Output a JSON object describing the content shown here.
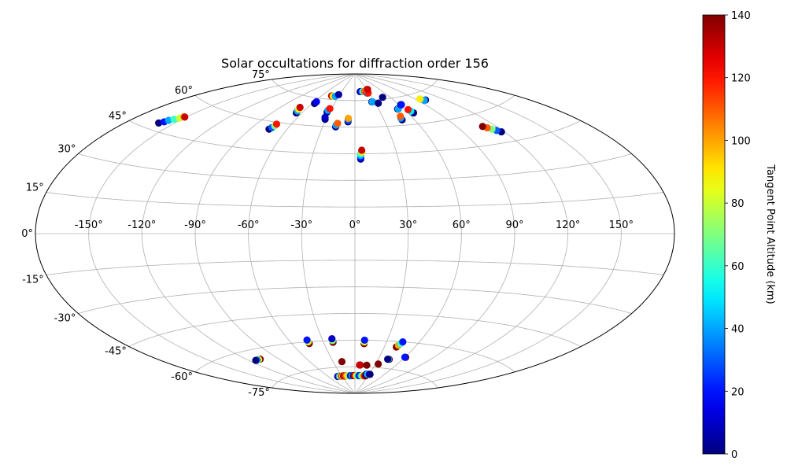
{
  "chart_data": {
    "type": "scatter",
    "projection": "aitoff",
    "title": "Solar occultations for diffraction order 156",
    "grid": true,
    "lon_ticks": [
      -150,
      -120,
      -90,
      -60,
      -30,
      0,
      30,
      60,
      90,
      120,
      150
    ],
    "lat_ticks": [
      -75,
      -60,
      -45,
      -30,
      -15,
      0,
      15,
      30,
      45,
      60,
      75
    ],
    "lon_tick_labels": [
      "-150°",
      "-120°",
      "-90°",
      "-60°",
      "-30°",
      "0°",
      "30°",
      "60°",
      "90°",
      "120°",
      "150°"
    ],
    "lat_tick_labels": [
      "-75°",
      "-60°",
      "-45°",
      "-30°",
      "-15°",
      "0°",
      "15°",
      "30°",
      "45°",
      "60°",
      "75°"
    ],
    "colorbar": {
      "label": "Tangent Point Altitude (km)",
      "range": [
        0,
        140
      ],
      "ticks": [
        0,
        20,
        40,
        60,
        80,
        100,
        120,
        140
      ],
      "tick_labels": [
        "0",
        "20",
        "40",
        "60",
        "80",
        "100",
        "120",
        "140"
      ],
      "colormap": "jet"
    },
    "series": [
      {
        "lon": [
          -160,
          -158,
          -157,
          -155,
          -153,
          -152,
          -151
        ],
        "lat": [
          48,
          49,
          50,
          51,
          52,
          53,
          53
        ],
        "alt": [
          0,
          20,
          40,
          60,
          80,
          100,
          130
        ]
      },
      {
        "lon": [
          -75,
          -74,
          -73,
          -73
        ],
        "lat": [
          56,
          57,
          58,
          59
        ],
        "alt": [
          0,
          30,
          70,
          120
        ]
      },
      {
        "lon": [
          -66,
          -67,
          -68,
          -69
        ],
        "lat": [
          66,
          67,
          68,
          69
        ],
        "alt": [
          0,
          40,
          90,
          130
        ]
      },
      {
        "lon": [
          -57,
          -57
        ],
        "lat": [
          72,
          73
        ],
        "alt": [
          0,
          15
        ]
      },
      {
        "lon": [
          -43,
          -40,
          -36,
          -32
        ],
        "lat": [
          77,
          77,
          77,
          78
        ],
        "alt": [
          130,
          90,
          40,
          5
        ]
      },
      {
        "lon": [
          -33,
          -33,
          -32
        ],
        "lat": [
          68,
          69,
          70
        ],
        "alt": [
          0,
          40,
          120
        ]
      },
      {
        "lon": [
          -31,
          -32
        ],
        "lat": [
          64,
          65
        ],
        "alt": [
          0,
          10
        ]
      },
      {
        "lon": [
          -18,
          -18,
          -17
        ],
        "lat": [
          60,
          61,
          62
        ],
        "alt": [
          0,
          40,
          110
        ]
      },
      {
        "lon": [
          -7,
          -7,
          -7
        ],
        "lat": [
          63,
          64,
          65
        ],
        "alt": [
          0,
          30,
          100
        ]
      },
      {
        "lon": [
          4,
          4,
          4,
          4,
          5,
          5
        ],
        "lat": [
          42,
          43,
          44,
          45,
          46,
          47
        ],
        "alt": [
          0,
          20,
          40,
          60,
          90,
          130
        ]
      },
      {
        "lon": [
          12,
          15,
          18,
          22
        ],
        "lat": [
          80,
          80,
          80,
          80
        ],
        "alt": [
          0,
          20,
          60,
          110
        ]
      },
      {
        "lon": [
          26,
          27,
          28
        ],
        "lat": [
          79,
          79,
          79
        ],
        "alt": [
          0,
          50,
          120
        ]
      },
      {
        "lon": [
          30,
          32
        ],
        "lat": [
          81,
          81
        ],
        "alt": [
          110,
          130
        ]
      },
      {
        "lon": [
          26,
          27
        ],
        "lat": [
          74,
          74
        ],
        "alt": [
          0,
          40
        ]
      },
      {
        "lon": [
          34
        ],
        "lat": [
          73
        ],
        "alt": [
          0
        ]
      },
      {
        "lon": [
          48
        ],
        "lat": [
          76
        ],
        "alt": [
          0
        ]
      },
      {
        "lon": [
          53,
          54
        ],
        "lat": [
          69,
          69
        ],
        "alt": [
          0,
          40
        ]
      },
      {
        "lon": [
          48,
          48,
          49
        ],
        "lat": [
          63,
          64,
          65
        ],
        "alt": [
          0,
          40,
          110
        ]
      },
      {
        "lon": [
          62,
          63
        ],
        "lat": [
          71,
          71
        ],
        "alt": [
          0,
          20
        ]
      },
      {
        "lon": [
          66,
          65,
          64
        ],
        "lat": [
          66,
          67,
          68
        ],
        "alt": [
          0,
          50,
          120
        ]
      },
      {
        "lon": [
          100,
          98,
          96
        ],
        "lat": [
          71,
          71,
          72
        ],
        "alt": [
          0,
          40,
          90
        ]
      },
      {
        "lon": [
          118,
          116,
          114,
          112,
          110
        ],
        "lat": [
          50,
          51,
          52,
          53,
          54
        ],
        "alt": [
          0,
          30,
          70,
          110,
          140
        ]
      },
      {
        "lon": [
          -44,
          -44,
          -44
        ],
        "lat": [
          -61,
          -60,
          -59
        ],
        "alt": [
          140,
          80,
          20
        ]
      },
      {
        "lon": [
          -21,
          -21,
          -21
        ],
        "lat": [
          -61,
          -60,
          -59
        ],
        "alt": [
          140,
          70,
          10
        ]
      },
      {
        "lon": [
          9,
          9,
          9
        ],
        "lat": [
          -62,
          -61,
          -60
        ],
        "alt": [
          140,
          80,
          20
        ]
      },
      {
        "lon": [
          42,
          43,
          44,
          45
        ],
        "lat": [
          -63,
          -62,
          -61,
          -60
        ],
        "alt": [
          140,
          100,
          60,
          20
        ]
      },
      {
        "lon": [
          -108,
          -110,
          -112,
          -114
        ],
        "lat": [
          -65,
          -65,
          -65,
          -65
        ],
        "alt": [
          140,
          90,
          40,
          0
        ]
      },
      {
        "lon": [
          -18
        ],
        "lat": [
          -72
        ],
        "alt": [
          140
        ]
      },
      {
        "lon": [
          8,
          7
        ],
        "lat": [
          -74,
          -74
        ],
        "alt": [
          140,
          130
        ]
      },
      {
        "lon": [
          18
        ],
        "lat": [
          -74
        ],
        "alt": [
          140
        ]
      },
      {
        "lon": [
          34
        ],
        "lat": [
          -73
        ],
        "alt": [
          140
        ]
      },
      {
        "lon": [
          44,
          43,
          42
        ],
        "lat": [
          -70,
          -70,
          -70
        ],
        "alt": [
          140,
          40,
          0
        ]
      },
      {
        "lon": [
          61,
          60
        ],
        "lat": [
          -68,
          -68
        ],
        "alt": [
          140,
          20
        ]
      },
      {
        "lon": [
          -40,
          -38,
          -36,
          -34,
          -32,
          -30,
          -28,
          -26
        ],
        "lat": [
          -80,
          -80,
          -80,
          -80,
          -80,
          -80,
          -80,
          -80
        ],
        "alt": [
          0,
          10,
          40,
          70,
          100,
          130,
          80,
          20
        ]
      },
      {
        "lon": [
          -26,
          -24,
          -22,
          -20,
          -18,
          -16,
          -14,
          -12,
          -10
        ],
        "lat": [
          -80,
          -80,
          -80,
          -80,
          -80,
          -80,
          -80,
          -80,
          -80
        ],
        "alt": [
          140,
          130,
          120,
          110,
          100,
          90,
          80,
          60,
          30
        ]
      },
      {
        "lon": [
          -10,
          -8,
          -6,
          -4,
          -2
        ],
        "lat": [
          -80,
          -80,
          -80,
          -80,
          -80
        ],
        "alt": [
          0,
          20,
          50,
          10,
          140
        ]
      },
      {
        "lon": [
          -2,
          0,
          2,
          4,
          6,
          8,
          10
        ],
        "lat": [
          -80,
          -80,
          -80,
          -80,
          -80,
          -80,
          -80
        ],
        "alt": [
          140,
          130,
          110,
          90,
          70,
          50,
          30
        ]
      },
      {
        "lon": [
          10,
          12,
          14,
          16,
          18,
          20,
          22,
          24
        ],
        "lat": [
          -80,
          -80,
          -80,
          -80,
          -80,
          -80,
          -80,
          -80
        ],
        "alt": [
          0,
          20,
          40,
          60,
          80,
          100,
          120,
          140
        ]
      },
      {
        "lon": [
          24,
          26,
          28,
          30,
          32
        ],
        "lat": [
          -79,
          -79,
          -79,
          -79,
          -79
        ],
        "alt": [
          0,
          30,
          60,
          20,
          0
        ]
      }
    ]
  }
}
